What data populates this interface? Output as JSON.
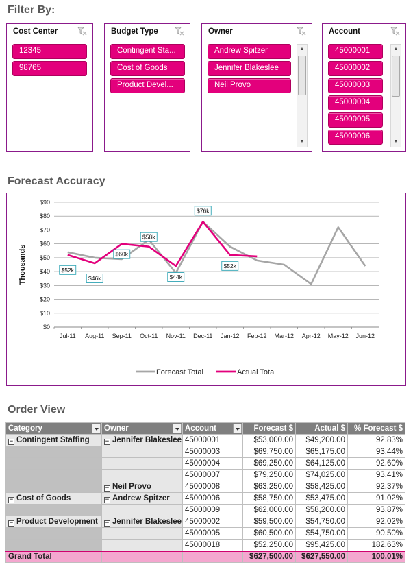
{
  "filter_section": {
    "title": "Filter By:",
    "slicers": [
      {
        "title": "Cost Center",
        "items": [
          "12345",
          "98765"
        ],
        "scrollbar": false
      },
      {
        "title": "Budget Type",
        "items": [
          "Contingent Sta...",
          "Cost of Goods",
          "Product Devel..."
        ],
        "scrollbar": false
      },
      {
        "title": "Owner",
        "items": [
          "Andrew Spitzer",
          "Jennifer Blakeslee",
          "Neil Provo"
        ],
        "scrollbar": true
      },
      {
        "title": "Account",
        "items": [
          "45000001",
          "45000002",
          "45000003",
          "45000004",
          "45000005",
          "45000006"
        ],
        "scrollbar": true
      }
    ]
  },
  "chart_section": {
    "title": "Forecast Accuracy"
  },
  "chart_data": {
    "type": "line",
    "ylabel": "Thousands",
    "ylim": [
      0,
      90
    ],
    "yticks": [
      "$0",
      "$10",
      "$20",
      "$30",
      "$40",
      "$50",
      "$60",
      "$70",
      "$80",
      "$90"
    ],
    "categories": [
      "Jul-11",
      "Aug-11",
      "Sep-11",
      "Oct-11",
      "Nov-11",
      "Dec-11",
      "Jan-12",
      "Feb-12",
      "Mar-12",
      "Apr-12",
      "May-12",
      "Jun-12"
    ],
    "grid": true,
    "legend": "bottom",
    "series": [
      {
        "name": "Forecast Total",
        "color": "#a6a6a6",
        "values": [
          54,
          50,
          49,
          63,
          39,
          76,
          58,
          48,
          45,
          31,
          72,
          44
        ]
      },
      {
        "name": "Actual Total",
        "color": "#e3007c",
        "values": [
          52,
          46,
          60,
          58,
          44,
          76,
          52,
          51,
          null,
          null,
          null,
          null
        ]
      }
    ],
    "data_labels": [
      {
        "category": "Jul-11",
        "text": "$52k"
      },
      {
        "category": "Aug-11",
        "text": "$46k"
      },
      {
        "category": "Sep-11",
        "text": "$60k"
      },
      {
        "category": "Oct-11",
        "text": "$58k"
      },
      {
        "category": "Nov-11",
        "text": "$44k"
      },
      {
        "category": "Dec-11",
        "text": "$76k"
      },
      {
        "category": "Jan-12",
        "text": "$52k"
      }
    ]
  },
  "order_section": {
    "title": "Order View",
    "columns": [
      "Category",
      "Owner",
      "Account",
      "Forecast $",
      "Actual $",
      "% Forecast $"
    ],
    "rows": [
      {
        "category": "Contingent Staffing",
        "owner": "Jennifer Blakeslee",
        "account": "45000001",
        "forecast": "$53,000.00",
        "actual": "$49,200.00",
        "pct": "92.83%"
      },
      {
        "category": "",
        "owner": "",
        "account": "45000003",
        "forecast": "$69,750.00",
        "actual": "$65,175.00",
        "pct": "93.44%"
      },
      {
        "category": "",
        "owner": "",
        "account": "45000004",
        "forecast": "$69,250.00",
        "actual": "$64,125.00",
        "pct": "92.60%"
      },
      {
        "category": "",
        "owner": "",
        "account": "45000007",
        "forecast": "$79,250.00",
        "actual": "$74,025.00",
        "pct": "93.41%"
      },
      {
        "category": "",
        "owner": "Neil Provo",
        "account": "45000008",
        "forecast": "$63,250.00",
        "actual": "$58,425.00",
        "pct": "92.37%"
      },
      {
        "category": "Cost of Goods",
        "owner": "Andrew Spitzer",
        "account": "45000006",
        "forecast": "$58,750.00",
        "actual": "$53,475.00",
        "pct": "91.02%"
      },
      {
        "category": "",
        "owner": "",
        "account": "45000009",
        "forecast": "$62,000.00",
        "actual": "$58,200.00",
        "pct": "93.87%"
      },
      {
        "category": "Product Development",
        "owner": "Jennifer Blakeslee",
        "account": "45000002",
        "forecast": "$59,500.00",
        "actual": "$54,750.00",
        "pct": "92.02%"
      },
      {
        "category": "",
        "owner": "",
        "account": "45000005",
        "forecast": "$60,500.00",
        "actual": "$54,750.00",
        "pct": "90.50%"
      },
      {
        "category": "",
        "owner": "",
        "account": "45000018",
        "forecast": "$52,250.00",
        "actual": "$95,425.00",
        "pct": "182.63%"
      }
    ],
    "grand_total": {
      "label": "Grand Total",
      "forecast": "$627,500.00",
      "actual": "$627,550.00",
      "pct": "100.01%"
    }
  },
  "colors": {
    "accent": "#e3007c",
    "border": "#8b1a8b",
    "header": "#7f7f7f",
    "total": "#f4a7cf"
  }
}
